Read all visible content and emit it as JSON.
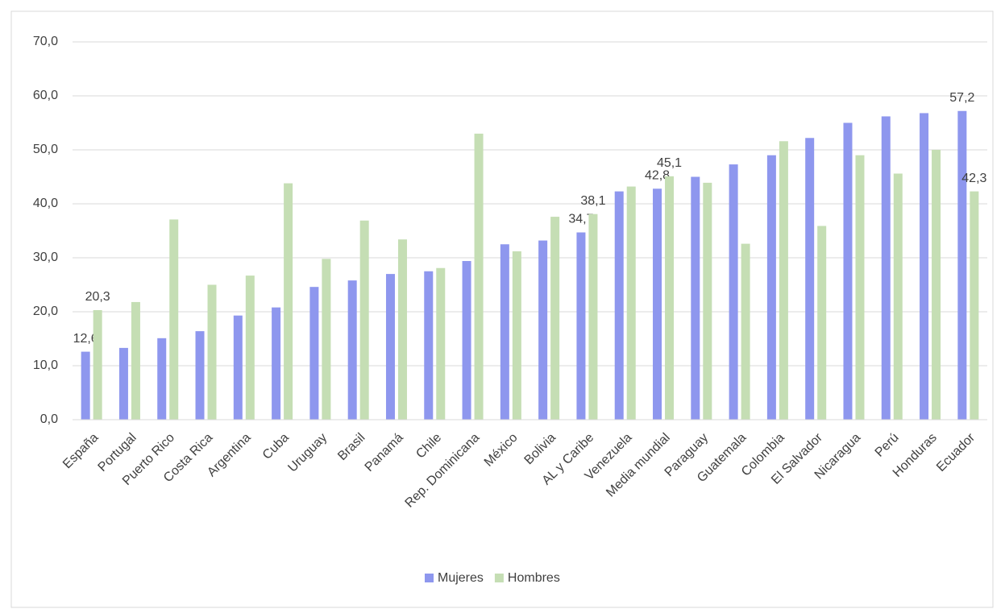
{
  "chart_data": {
    "type": "bar",
    "categories": [
      "España",
      "Portugal",
      "Puerto Rico",
      "Costa Rica",
      "Argentina",
      "Cuba",
      "Uruguay",
      "Brasil",
      "Panamá",
      "Chile",
      "Rep. Dominicana",
      "México",
      "Bolivia",
      "AL y Caribe",
      "Venezuela",
      "Media mundial",
      "Paraguay",
      "Guatemala",
      "Colombia",
      "El Salvador",
      "Nicaragua",
      "Perú",
      "Honduras",
      "Ecuador"
    ],
    "series": [
      {
        "name": "Mujeres",
        "color": "#8e97ee",
        "values": [
          12.6,
          13.3,
          15.1,
          16.4,
          19.3,
          20.8,
          24.6,
          25.8,
          27.0,
          27.5,
          29.4,
          32.5,
          33.2,
          34.7,
          42.3,
          42.8,
          45.0,
          47.3,
          49.0,
          52.2,
          55.0,
          56.2,
          56.8,
          57.2
        ],
        "value_labels": [
          "12,6",
          null,
          null,
          null,
          null,
          null,
          null,
          null,
          null,
          null,
          null,
          null,
          null,
          "34,7",
          null,
          "42,8",
          null,
          null,
          null,
          null,
          null,
          null,
          null,
          "57,2"
        ]
      },
      {
        "name": "Hombres",
        "color": "#c5deb4",
        "values": [
          20.3,
          21.8,
          37.1,
          25.0,
          26.7,
          43.8,
          29.8,
          36.9,
          33.4,
          28.1,
          53.0,
          31.2,
          37.6,
          38.1,
          43.2,
          45.1,
          43.9,
          32.6,
          51.6,
          35.9,
          49.0,
          45.6,
          50.0,
          42.3
        ],
        "value_labels": [
          "20,3",
          null,
          null,
          null,
          null,
          null,
          null,
          null,
          null,
          null,
          null,
          null,
          null,
          "38,1",
          null,
          "45,1",
          null,
          null,
          null,
          null,
          null,
          null,
          null,
          "42,3"
        ]
      }
    ],
    "ylim": [
      0,
      70
    ],
    "yticks": [
      {
        "value": 0,
        "label": "0,0"
      },
      {
        "value": 10,
        "label": "10,0"
      },
      {
        "value": 20,
        "label": "20,0"
      },
      {
        "value": 30,
        "label": "30,0"
      },
      {
        "value": 40,
        "label": "40,0"
      },
      {
        "value": 50,
        "label": "50,0"
      },
      {
        "value": 60,
        "label": "60,0"
      },
      {
        "value": 70,
        "label": "70,0"
      }
    ],
    "grid": true,
    "legend": "bottom"
  }
}
